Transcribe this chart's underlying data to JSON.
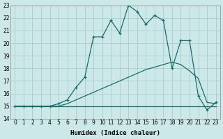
{
  "xlabel": "Humidex (Indice chaleur)",
  "bg_color": "#cce8e8",
  "grid_color": "#aacccc",
  "line_color": "#1a6b6b",
  "xlim_min": -0.5,
  "xlim_max": 23.5,
  "ylim_min": 14,
  "ylim_max": 23,
  "xticks": [
    0,
    1,
    2,
    3,
    4,
    5,
    6,
    7,
    8,
    9,
    10,
    11,
    12,
    13,
    14,
    15,
    16,
    17,
    18,
    19,
    20,
    21,
    22,
    23
  ],
  "yticks": [
    14,
    15,
    16,
    17,
    18,
    19,
    20,
    21,
    22,
    23
  ],
  "line1_x": [
    0,
    1,
    2,
    3,
    4,
    5,
    6,
    7,
    8,
    9,
    10,
    11,
    12,
    13,
    14,
    15,
    16,
    17,
    18,
    19,
    20,
    21,
    22,
    23
  ],
  "line1_y": [
    15,
    15,
    15,
    15,
    15,
    15,
    15,
    15,
    15,
    15,
    15,
    15,
    15,
    15,
    15,
    15,
    15,
    15,
    15,
    15,
    15,
    15,
    15,
    15
  ],
  "line2_x": [
    0,
    2,
    3,
    4,
    5,
    6,
    7,
    8,
    9,
    10,
    11,
    12,
    13,
    14,
    15,
    16,
    17,
    18,
    19,
    20,
    21,
    22,
    23
  ],
  "line2_y": [
    15,
    15,
    15,
    15,
    15,
    15.2,
    15.5,
    15.8,
    16.1,
    16.4,
    16.7,
    17.0,
    17.3,
    17.6,
    17.9,
    18.1,
    18.3,
    18.5,
    18.3,
    17.8,
    17.2,
    15.3,
    15.2
  ],
  "line3_x": [
    0,
    1,
    2,
    3,
    4,
    5,
    6,
    7,
    8,
    9,
    10,
    11,
    12,
    13,
    14,
    15,
    16,
    17,
    18,
    19,
    20,
    21,
    22,
    23
  ],
  "line3_y": [
    15,
    15,
    15,
    15,
    15,
    15.2,
    15.5,
    16.5,
    17.3,
    20.5,
    20.5,
    21.8,
    20.8,
    23.0,
    22.5,
    21.5,
    22.2,
    21.8,
    18.0,
    20.2,
    20.2,
    15.8,
    14.7,
    15.3
  ],
  "tick_fontsize": 5.5,
  "xlabel_fontsize": 6.5,
  "linewidth": 0.9,
  "marker_size": 3.5,
  "marker_lw": 0.9
}
